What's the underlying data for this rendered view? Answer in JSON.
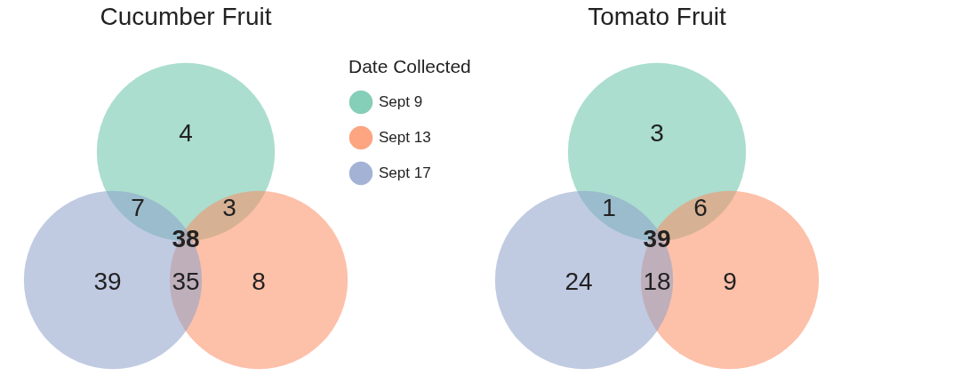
{
  "chart_data": [
    {
      "type": "other",
      "title": "Cucumber Fruit",
      "data_labels": true,
      "categories": [
        null,
        null,
        null,
        null,
        null,
        null,
        null
      ],
      "values": [
        4,
        7,
        3,
        38,
        39,
        35,
        8
      ]
    },
    {
      "type": "other",
      "legend_title": "Date Collected",
      "categories": [
        "Sept 9",
        "Sept 13",
        "Sept 17"
      ],
      "colors": [
        "#66c2a5",
        "#fc8d62",
        "#8da0cb"
      ]
    },
    {
      "type": "other",
      "title": "Tomato Fruit",
      "data_labels": true,
      "categories": [
        null,
        null,
        null,
        null,
        null,
        null,
        null
      ],
      "values": [
        3,
        1,
        6,
        39,
        24,
        18,
        9
      ]
    }
  ]
}
